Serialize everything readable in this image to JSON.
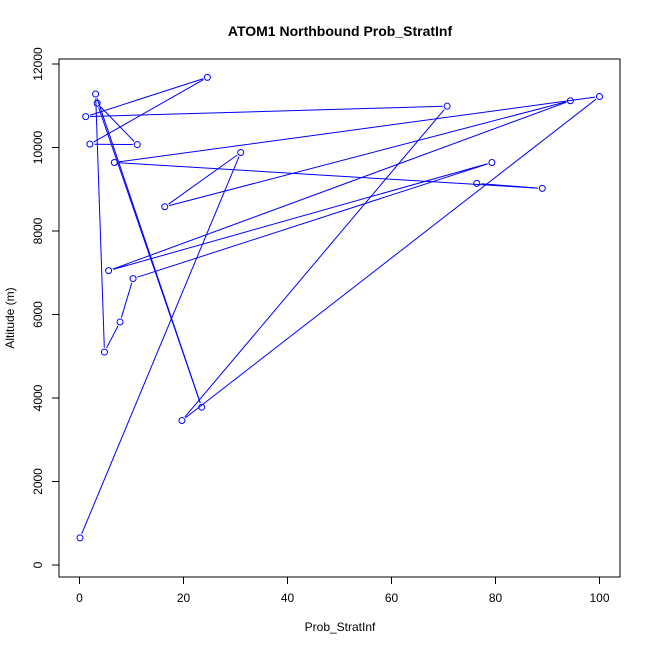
{
  "chart_data": {
    "type": "line",
    "title": "ATOM1 Northbound Prob_StratInf",
    "xlabel": "Prob_StratInf",
    "ylabel": "Altitude (m)",
    "xlim": [
      0,
      100
    ],
    "ylim": [
      0,
      12000
    ],
    "x_ticks": [
      0,
      20,
      40,
      60,
      80,
      100
    ],
    "y_ticks": [
      0,
      2000,
      4000,
      6000,
      8000,
      10000,
      12000
    ],
    "grid": false,
    "series": [
      {
        "color": "#0000ff",
        "marker": "open-circle",
        "line": true,
        "points": [
          {
            "x": 0.1,
            "y": 650
          },
          {
            "x": 31.0,
            "y": 9880
          },
          {
            "x": 16.4,
            "y": 8580
          },
          {
            "x": 94.4,
            "y": 11120
          },
          {
            "x": 5.6,
            "y": 7050
          },
          {
            "x": 79.3,
            "y": 9640
          },
          {
            "x": 10.3,
            "y": 6860
          },
          {
            "x": 7.8,
            "y": 5820
          },
          {
            "x": 4.8,
            "y": 5100
          },
          {
            "x": 3.1,
            "y": 11280
          },
          {
            "x": 23.5,
            "y": 3780
          },
          {
            "x": 3.4,
            "y": 11060
          },
          {
            "x": 11.1,
            "y": 10070
          },
          {
            "x": 2.0,
            "y": 10080
          },
          {
            "x": 24.6,
            "y": 11680
          },
          {
            "x": 1.2,
            "y": 10740
          },
          {
            "x": 70.7,
            "y": 10990
          },
          {
            "x": 19.7,
            "y": 3460
          },
          {
            "x": 100.0,
            "y": 11220
          },
          {
            "x": 6.7,
            "y": 9640
          },
          {
            "x": 89.0,
            "y": 9020
          },
          {
            "x": 76.4,
            "y": 9140
          }
        ]
      }
    ]
  }
}
